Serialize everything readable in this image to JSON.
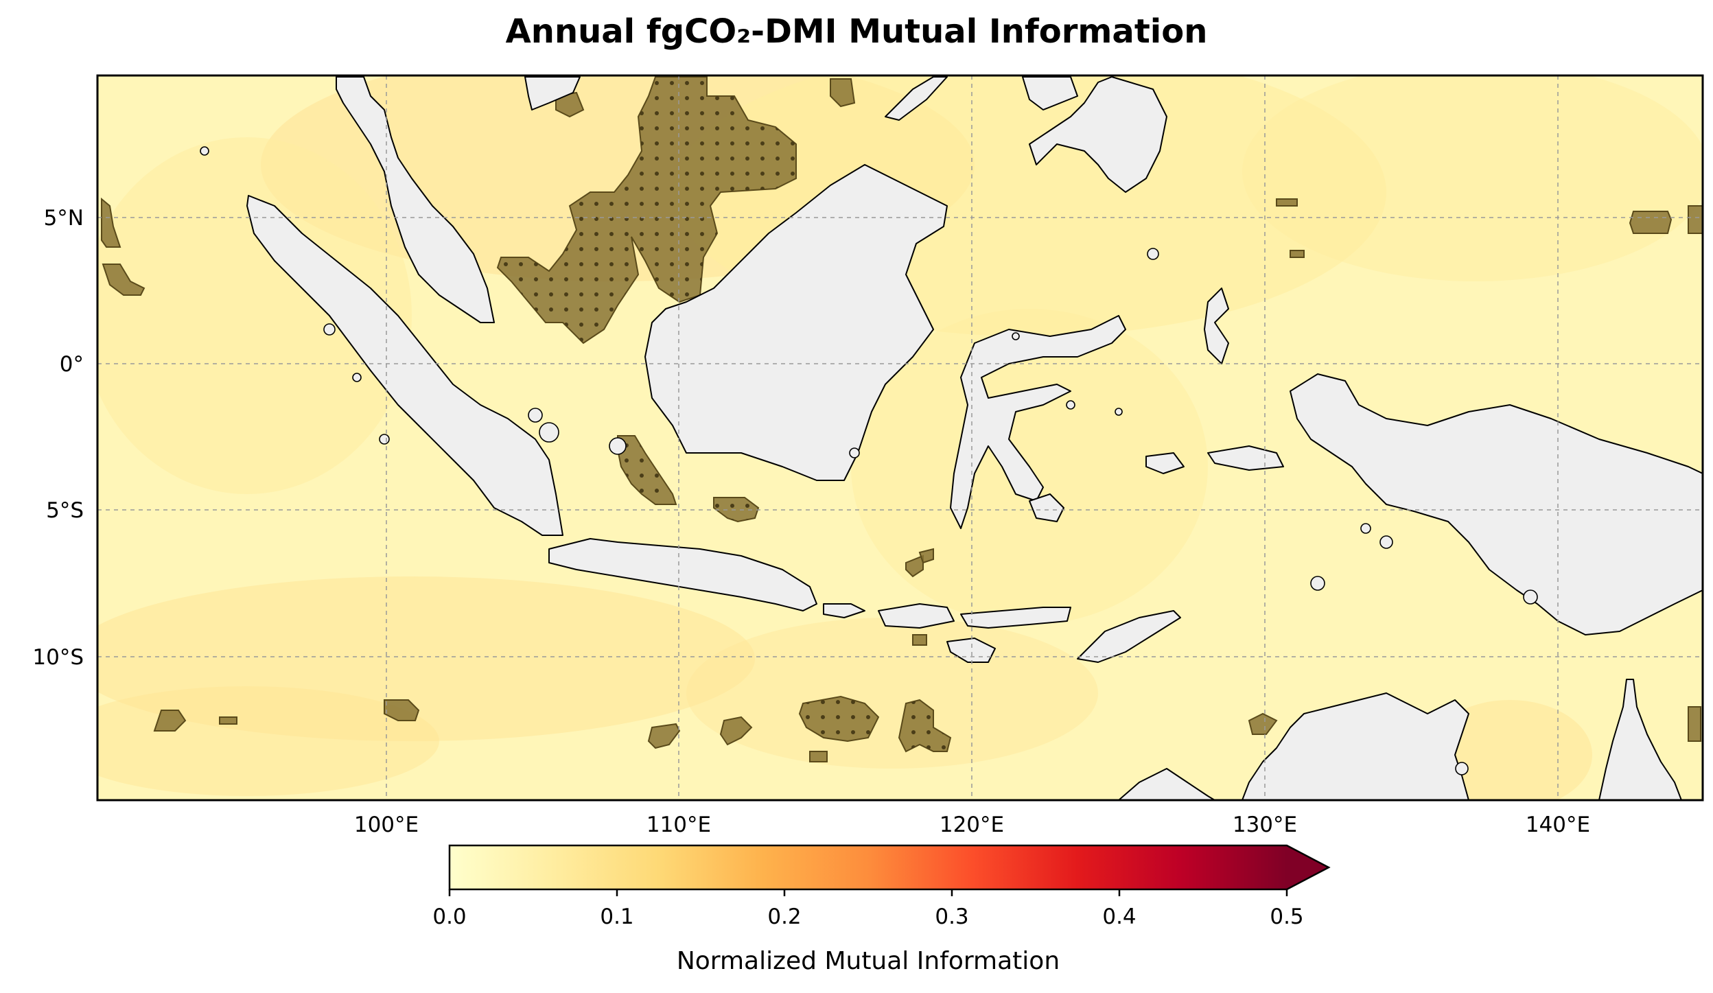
{
  "title": "Annual fgCO₂-DMI Mutual Information",
  "map": {
    "lon_range": [
      90,
      145
    ],
    "lat_range": [
      -15,
      9.7
    ],
    "gridlines": true,
    "lon_ticks": [
      "100°E",
      "110°E",
      "120°E",
      "130°E",
      "140°E"
    ],
    "lat_ticks": [
      "5°N",
      "0°",
      "5°S",
      "10°S"
    ],
    "land_color": "#efefef",
    "ocean_base_color": "#ffffc2",
    "significance_hatch_color": "#8a7435",
    "significance_marker": "stippled dots"
  },
  "colorbar": {
    "label": "Normalized Mutual Information",
    "ticks": [
      "0.0",
      "0.1",
      "0.2",
      "0.3",
      "0.4",
      "0.5"
    ],
    "range": [
      0.0,
      0.5
    ],
    "extend": "max",
    "colormap": "YlOrRd",
    "colors": [
      "#ffffcc",
      "#ffeda0",
      "#fed976",
      "#feb24c",
      "#fd8d3c",
      "#fc4e2a",
      "#e31a1c",
      "#bd0026",
      "#800026"
    ]
  }
}
